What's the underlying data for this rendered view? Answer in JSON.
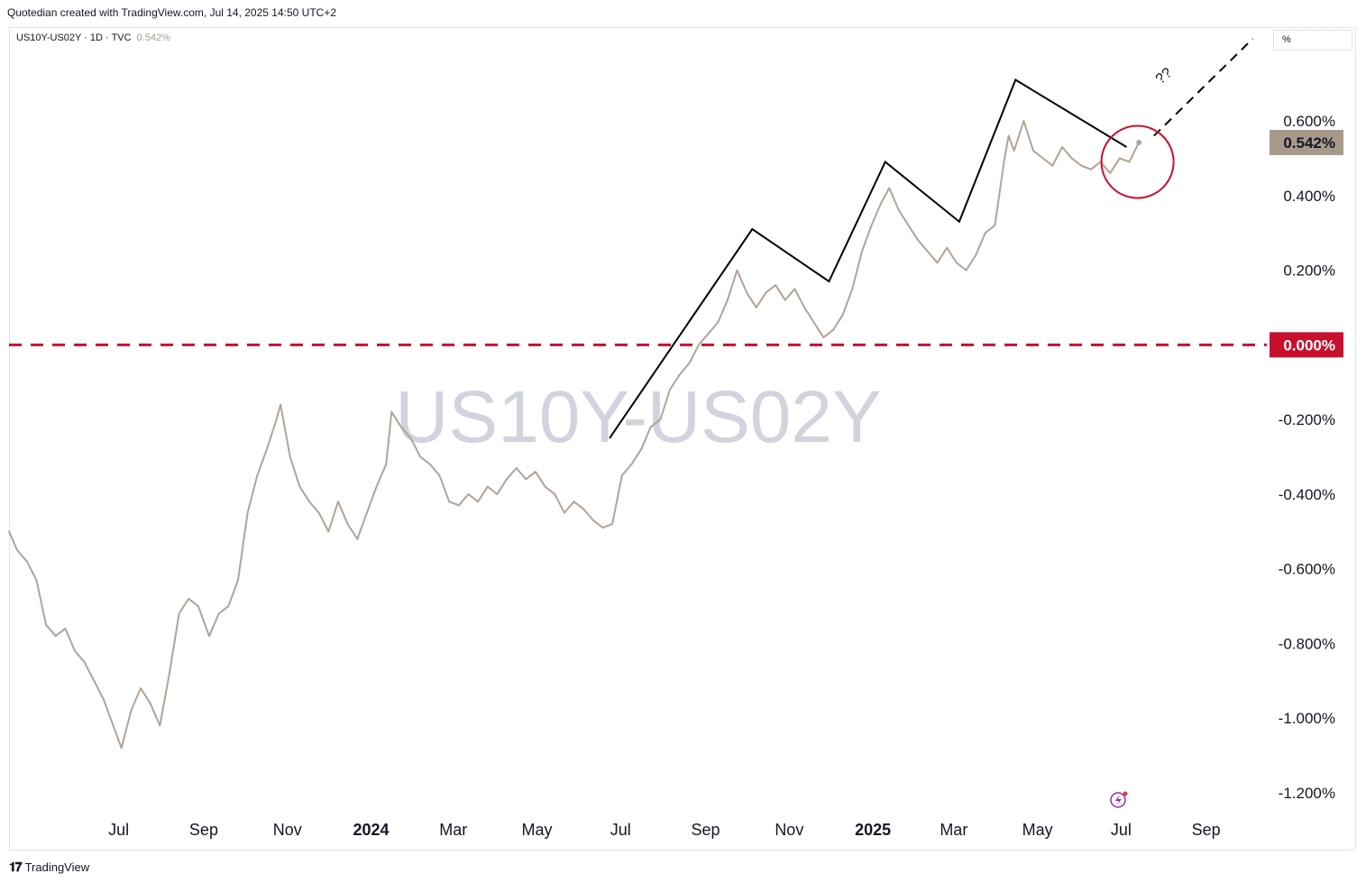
{
  "header": {
    "credit": "Quotedian created with TradingView.com, Jul 14, 2025 14:50 UTC+2"
  },
  "legend": {
    "symbol": "US10Y-US02Y · 1D · TVC",
    "last_value": "0.542%"
  },
  "scale_unit": "%",
  "watermark": "US10Y-US02Y",
  "annotation_text": "??",
  "footer": {
    "brand": "TradingView"
  },
  "colors": {
    "series": "#b1a496",
    "zero_line": "#c8102e",
    "last_badge": "#a89a8b",
    "circle": "#c8102e",
    "trendline": "#000000",
    "watermark": "#d1d4dc"
  },
  "chart_data": {
    "type": "line",
    "title": "",
    "xlabel": "",
    "ylabel": "",
    "ylim": [
      -1.3,
      0.8
    ],
    "y_ticks": [
      0.6,
      0.4,
      0.2,
      0.0,
      -0.2,
      -0.4,
      -0.6,
      -0.8,
      -1.0,
      -1.2
    ],
    "y_tick_labels": [
      "0.600%",
      "0.400%",
      "0.200%",
      "0.000%",
      "-0.200%",
      "-0.400%",
      "-0.600%",
      "-0.800%",
      "-1.000%",
      "-1.200%"
    ],
    "x_tick_labels": [
      {
        "label": "Jul",
        "date": "2023-07-01",
        "bold": false
      },
      {
        "label": "Sep",
        "date": "2023-09-01",
        "bold": false
      },
      {
        "label": "Nov",
        "date": "2023-11-01",
        "bold": false
      },
      {
        "label": "2024",
        "date": "2024-01-01",
        "bold": true
      },
      {
        "label": "Mar",
        "date": "2024-03-01",
        "bold": false
      },
      {
        "label": "May",
        "date": "2024-05-01",
        "bold": false
      },
      {
        "label": "Jul",
        "date": "2024-07-01",
        "bold": false
      },
      {
        "label": "Sep",
        "date": "2024-09-01",
        "bold": false
      },
      {
        "label": "Nov",
        "date": "2024-11-01",
        "bold": false
      },
      {
        "label": "2025",
        "date": "2025-01-01",
        "bold": true
      },
      {
        "label": "Mar",
        "date": "2025-03-01",
        "bold": false
      },
      {
        "label": "May",
        "date": "2025-05-01",
        "bold": false
      },
      {
        "label": "Jul",
        "date": "2025-07-01",
        "bold": false
      },
      {
        "label": "Sep",
        "date": "2025-09-01",
        "bold": false
      }
    ],
    "x_range": [
      "2023-04-12",
      "2025-10-12"
    ],
    "series": [
      {
        "values": [
          [
            "2023-04-12",
            -0.5
          ],
          [
            "2023-04-18",
            -0.55
          ],
          [
            "2023-04-25",
            -0.58
          ],
          [
            "2023-05-02",
            -0.63
          ],
          [
            "2023-05-09",
            -0.75
          ],
          [
            "2023-05-16",
            -0.78
          ],
          [
            "2023-05-23",
            -0.76
          ],
          [
            "2023-05-30",
            -0.82
          ],
          [
            "2023-06-06",
            -0.85
          ],
          [
            "2023-06-13",
            -0.9
          ],
          [
            "2023-06-20",
            -0.95
          ],
          [
            "2023-06-27",
            -1.02
          ],
          [
            "2023-07-03",
            -1.08
          ],
          [
            "2023-07-10",
            -0.98
          ],
          [
            "2023-07-17",
            -0.92
          ],
          [
            "2023-07-24",
            -0.96
          ],
          [
            "2023-07-31",
            -1.02
          ],
          [
            "2023-08-07",
            -0.88
          ],
          [
            "2023-08-14",
            -0.72
          ],
          [
            "2023-08-21",
            -0.68
          ],
          [
            "2023-08-28",
            -0.7
          ],
          [
            "2023-09-05",
            -0.78
          ],
          [
            "2023-09-12",
            -0.72
          ],
          [
            "2023-09-19",
            -0.7
          ],
          [
            "2023-09-26",
            -0.63
          ],
          [
            "2023-10-03",
            -0.45
          ],
          [
            "2023-10-10",
            -0.35
          ],
          [
            "2023-10-17",
            -0.28
          ],
          [
            "2023-10-24",
            -0.2
          ],
          [
            "2023-10-27",
            -0.16
          ],
          [
            "2023-11-03",
            -0.3
          ],
          [
            "2023-11-10",
            -0.38
          ],
          [
            "2023-11-17",
            -0.42
          ],
          [
            "2023-11-24",
            -0.45
          ],
          [
            "2023-12-01",
            -0.5
          ],
          [
            "2023-12-08",
            -0.42
          ],
          [
            "2023-12-15",
            -0.48
          ],
          [
            "2023-12-22",
            -0.52
          ],
          [
            "2023-12-29",
            -0.45
          ],
          [
            "2024-01-05",
            -0.38
          ],
          [
            "2024-01-12",
            -0.32
          ],
          [
            "2024-01-16",
            -0.18
          ],
          [
            "2024-01-23",
            -0.22
          ],
          [
            "2024-01-30",
            -0.25
          ],
          [
            "2024-02-06",
            -0.3
          ],
          [
            "2024-02-13",
            -0.32
          ],
          [
            "2024-02-20",
            -0.35
          ],
          [
            "2024-02-27",
            -0.42
          ],
          [
            "2024-03-05",
            -0.43
          ],
          [
            "2024-03-12",
            -0.4
          ],
          [
            "2024-03-19",
            -0.42
          ],
          [
            "2024-03-26",
            -0.38
          ],
          [
            "2024-04-02",
            -0.4
          ],
          [
            "2024-04-09",
            -0.36
          ],
          [
            "2024-04-16",
            -0.33
          ],
          [
            "2024-04-23",
            -0.36
          ],
          [
            "2024-04-30",
            -0.34
          ],
          [
            "2024-05-07",
            -0.38
          ],
          [
            "2024-05-14",
            -0.4
          ],
          [
            "2024-05-21",
            -0.45
          ],
          [
            "2024-05-28",
            -0.42
          ],
          [
            "2024-06-04",
            -0.44
          ],
          [
            "2024-06-11",
            -0.47
          ],
          [
            "2024-06-18",
            -0.49
          ],
          [
            "2024-06-25",
            -0.48
          ],
          [
            "2024-07-02",
            -0.35
          ],
          [
            "2024-07-09",
            -0.32
          ],
          [
            "2024-07-16",
            -0.28
          ],
          [
            "2024-07-23",
            -0.22
          ],
          [
            "2024-07-30",
            -0.2
          ],
          [
            "2024-08-06",
            -0.12
          ],
          [
            "2024-08-13",
            -0.08
          ],
          [
            "2024-08-20",
            -0.05
          ],
          [
            "2024-08-27",
            0.0
          ],
          [
            "2024-09-03",
            0.03
          ],
          [
            "2024-09-10",
            0.06
          ],
          [
            "2024-09-17",
            0.12
          ],
          [
            "2024-09-24",
            0.2
          ],
          [
            "2024-10-01",
            0.14
          ],
          [
            "2024-10-08",
            0.1
          ],
          [
            "2024-10-15",
            0.14
          ],
          [
            "2024-10-22",
            0.16
          ],
          [
            "2024-10-29",
            0.12
          ],
          [
            "2024-11-05",
            0.15
          ],
          [
            "2024-11-12",
            0.1
          ],
          [
            "2024-11-19",
            0.06
          ],
          [
            "2024-11-26",
            0.02
          ],
          [
            "2024-12-03",
            0.04
          ],
          [
            "2024-12-10",
            0.08
          ],
          [
            "2024-12-17",
            0.15
          ],
          [
            "2024-12-24",
            0.25
          ],
          [
            "2024-12-31",
            0.32
          ],
          [
            "2025-01-07",
            0.38
          ],
          [
            "2025-01-13",
            0.42
          ],
          [
            "2025-01-20",
            0.36
          ],
          [
            "2025-01-27",
            0.32
          ],
          [
            "2025-02-03",
            0.28
          ],
          [
            "2025-02-10",
            0.25
          ],
          [
            "2025-02-17",
            0.22
          ],
          [
            "2025-02-24",
            0.26
          ],
          [
            "2025-03-03",
            0.22
          ],
          [
            "2025-03-10",
            0.2
          ],
          [
            "2025-03-17",
            0.24
          ],
          [
            "2025-03-24",
            0.3
          ],
          [
            "2025-03-31",
            0.32
          ],
          [
            "2025-04-07",
            0.5
          ],
          [
            "2025-04-10",
            0.56
          ],
          [
            "2025-04-14",
            0.52
          ],
          [
            "2025-04-21",
            0.6
          ],
          [
            "2025-04-28",
            0.52
          ],
          [
            "2025-05-05",
            0.5
          ],
          [
            "2025-05-12",
            0.48
          ],
          [
            "2025-05-19",
            0.53
          ],
          [
            "2025-05-26",
            0.5
          ],
          [
            "2025-06-02",
            0.48
          ],
          [
            "2025-06-09",
            0.47
          ],
          [
            "2025-06-16",
            0.49
          ],
          [
            "2025-06-23",
            0.46
          ],
          [
            "2025-06-30",
            0.5
          ],
          [
            "2025-07-07",
            0.49
          ],
          [
            "2025-07-14",
            0.542
          ]
        ]
      }
    ],
    "zero_line": {
      "value": 0.0,
      "label": "0.000%"
    },
    "last_value_label": "0.542%",
    "trendline_points": [
      [
        "2024-06-23",
        -0.25
      ],
      [
        "2024-10-05",
        0.31
      ],
      [
        "2024-11-30",
        0.17
      ],
      [
        "2025-01-10",
        0.49
      ],
      [
        "2025-03-05",
        0.33
      ],
      [
        "2025-04-15",
        0.71
      ],
      [
        "2025-07-05",
        0.53
      ]
    ],
    "projection_points": [
      [
        "2025-07-25",
        0.56
      ],
      [
        "2025-10-05",
        0.82
      ]
    ],
    "circle_center": [
      "2025-07-13",
      0.49
    ]
  }
}
